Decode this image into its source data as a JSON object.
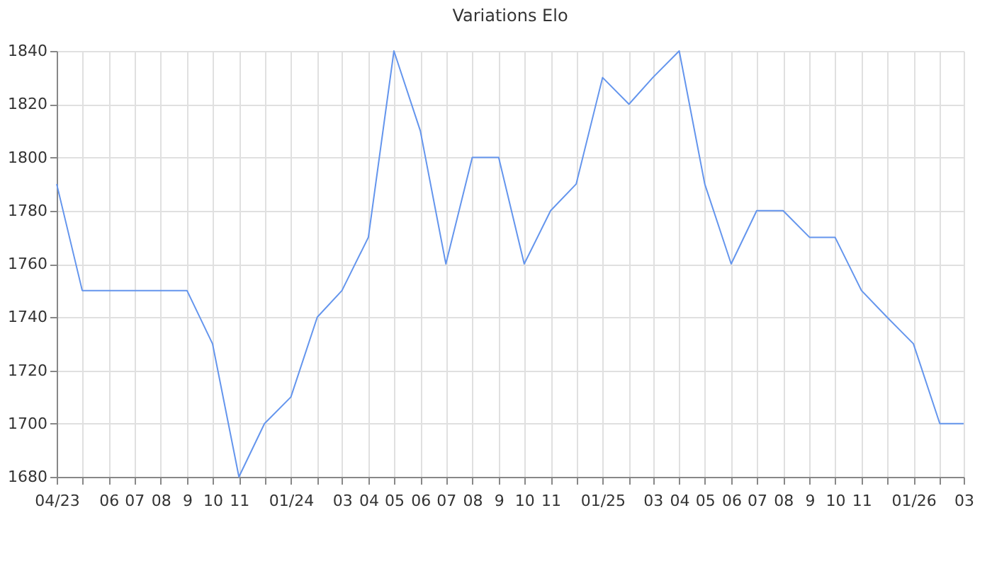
{
  "chart_data": {
    "type": "line",
    "title": "Variations Elo",
    "x": [
      "2023-04",
      "2023-05",
      "2023-06",
      "2023-07",
      "2023-08",
      "2023-09",
      "2023-10",
      "2023-11",
      "2023-12",
      "2024-01",
      "2024-02",
      "2024-03",
      "2024-04",
      "2024-05",
      "2024-06",
      "2024-07",
      "2024-08",
      "2024-09",
      "2024-10",
      "2024-11",
      "2024-12",
      "2025-01",
      "2025-02",
      "2025-03",
      "2025-04",
      "2025-05",
      "2025-06",
      "2025-07",
      "2025-08",
      "2025-09",
      "2025-10",
      "2025-11",
      "2025-12",
      "2026-01",
      "2026-02",
      "2026-03"
    ],
    "series": [
      {
        "color": "#6495ed",
        "values": [
          1790,
          1750,
          1750,
          1750,
          1750,
          1750,
          1730,
          1680,
          1700,
          1710,
          1740,
          1750,
          1770,
          1840,
          1810,
          1760,
          1800,
          1800,
          1760,
          1780,
          1790,
          1830,
          1820,
          1830,
          1840,
          1790,
          1760,
          1780,
          1780,
          1770,
          1770,
          1750,
          1740,
          1730,
          1700,
          1700
        ]
      }
    ],
    "xlim": [
      "2023-04",
      "2026-03"
    ],
    "xticks": [
      {
        "value": "2023-04",
        "label": "04/23"
      },
      {
        "value": "2023-05",
        "label": null
      },
      {
        "value": "2023-06",
        "label": "06"
      },
      {
        "value": "2023-07",
        "label": "07"
      },
      {
        "value": "2023-08",
        "label": "08"
      },
      {
        "value": "2023-09",
        "label": "9"
      },
      {
        "value": "2023-10",
        "label": "10"
      },
      {
        "value": "2023-11",
        "label": "11"
      },
      {
        "value": "2023-12",
        "label": null
      },
      {
        "value": "2024-01",
        "label": "01/24"
      },
      {
        "value": "2024-02",
        "label": null
      },
      {
        "value": "2024-03",
        "label": "03"
      },
      {
        "value": "2024-04",
        "label": "04"
      },
      {
        "value": "2024-05",
        "label": "05"
      },
      {
        "value": "2024-06",
        "label": "06"
      },
      {
        "value": "2024-07",
        "label": "07"
      },
      {
        "value": "2024-08",
        "label": "08"
      },
      {
        "value": "2024-09",
        "label": "9"
      },
      {
        "value": "2024-10",
        "label": "10"
      },
      {
        "value": "2024-11",
        "label": "11"
      },
      {
        "value": "2024-12",
        "label": null
      },
      {
        "value": "2025-01",
        "label": "01/25"
      },
      {
        "value": "2025-02",
        "label": null
      },
      {
        "value": "2025-03",
        "label": "03"
      },
      {
        "value": "2025-04",
        "label": "04"
      },
      {
        "value": "2025-05",
        "label": "05"
      },
      {
        "value": "2025-06",
        "label": "06"
      },
      {
        "value": "2025-07",
        "label": "07"
      },
      {
        "value": "2025-08",
        "label": "08"
      },
      {
        "value": "2025-09",
        "label": "9"
      },
      {
        "value": "2025-10",
        "label": "10"
      },
      {
        "value": "2025-11",
        "label": "11"
      },
      {
        "value": "2025-12",
        "label": null
      },
      {
        "value": "2026-01",
        "label": "01/26"
      },
      {
        "value": "2026-02",
        "label": null
      },
      {
        "value": "2026-03",
        "label": "03"
      }
    ],
    "ylim": [
      1680,
      1840
    ],
    "yticks": [
      1680,
      1700,
      1720,
      1740,
      1760,
      1780,
      1800,
      1820,
      1840
    ],
    "grid": true,
    "marker": "none",
    "line_style": "solid"
  }
}
